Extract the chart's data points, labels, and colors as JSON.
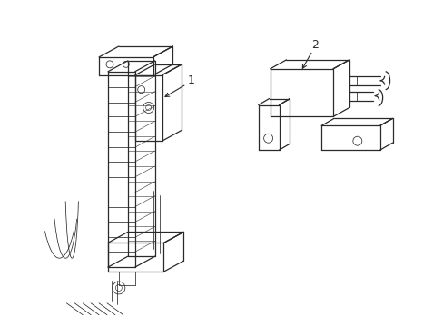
{
  "background_color": "#ffffff",
  "line_color": "#2a2a2a",
  "lw_main": 0.9,
  "lw_thin": 0.55,
  "label1": "1",
  "label2": "2",
  "figsize": [
    4.89,
    3.6
  ],
  "dpi": 100
}
